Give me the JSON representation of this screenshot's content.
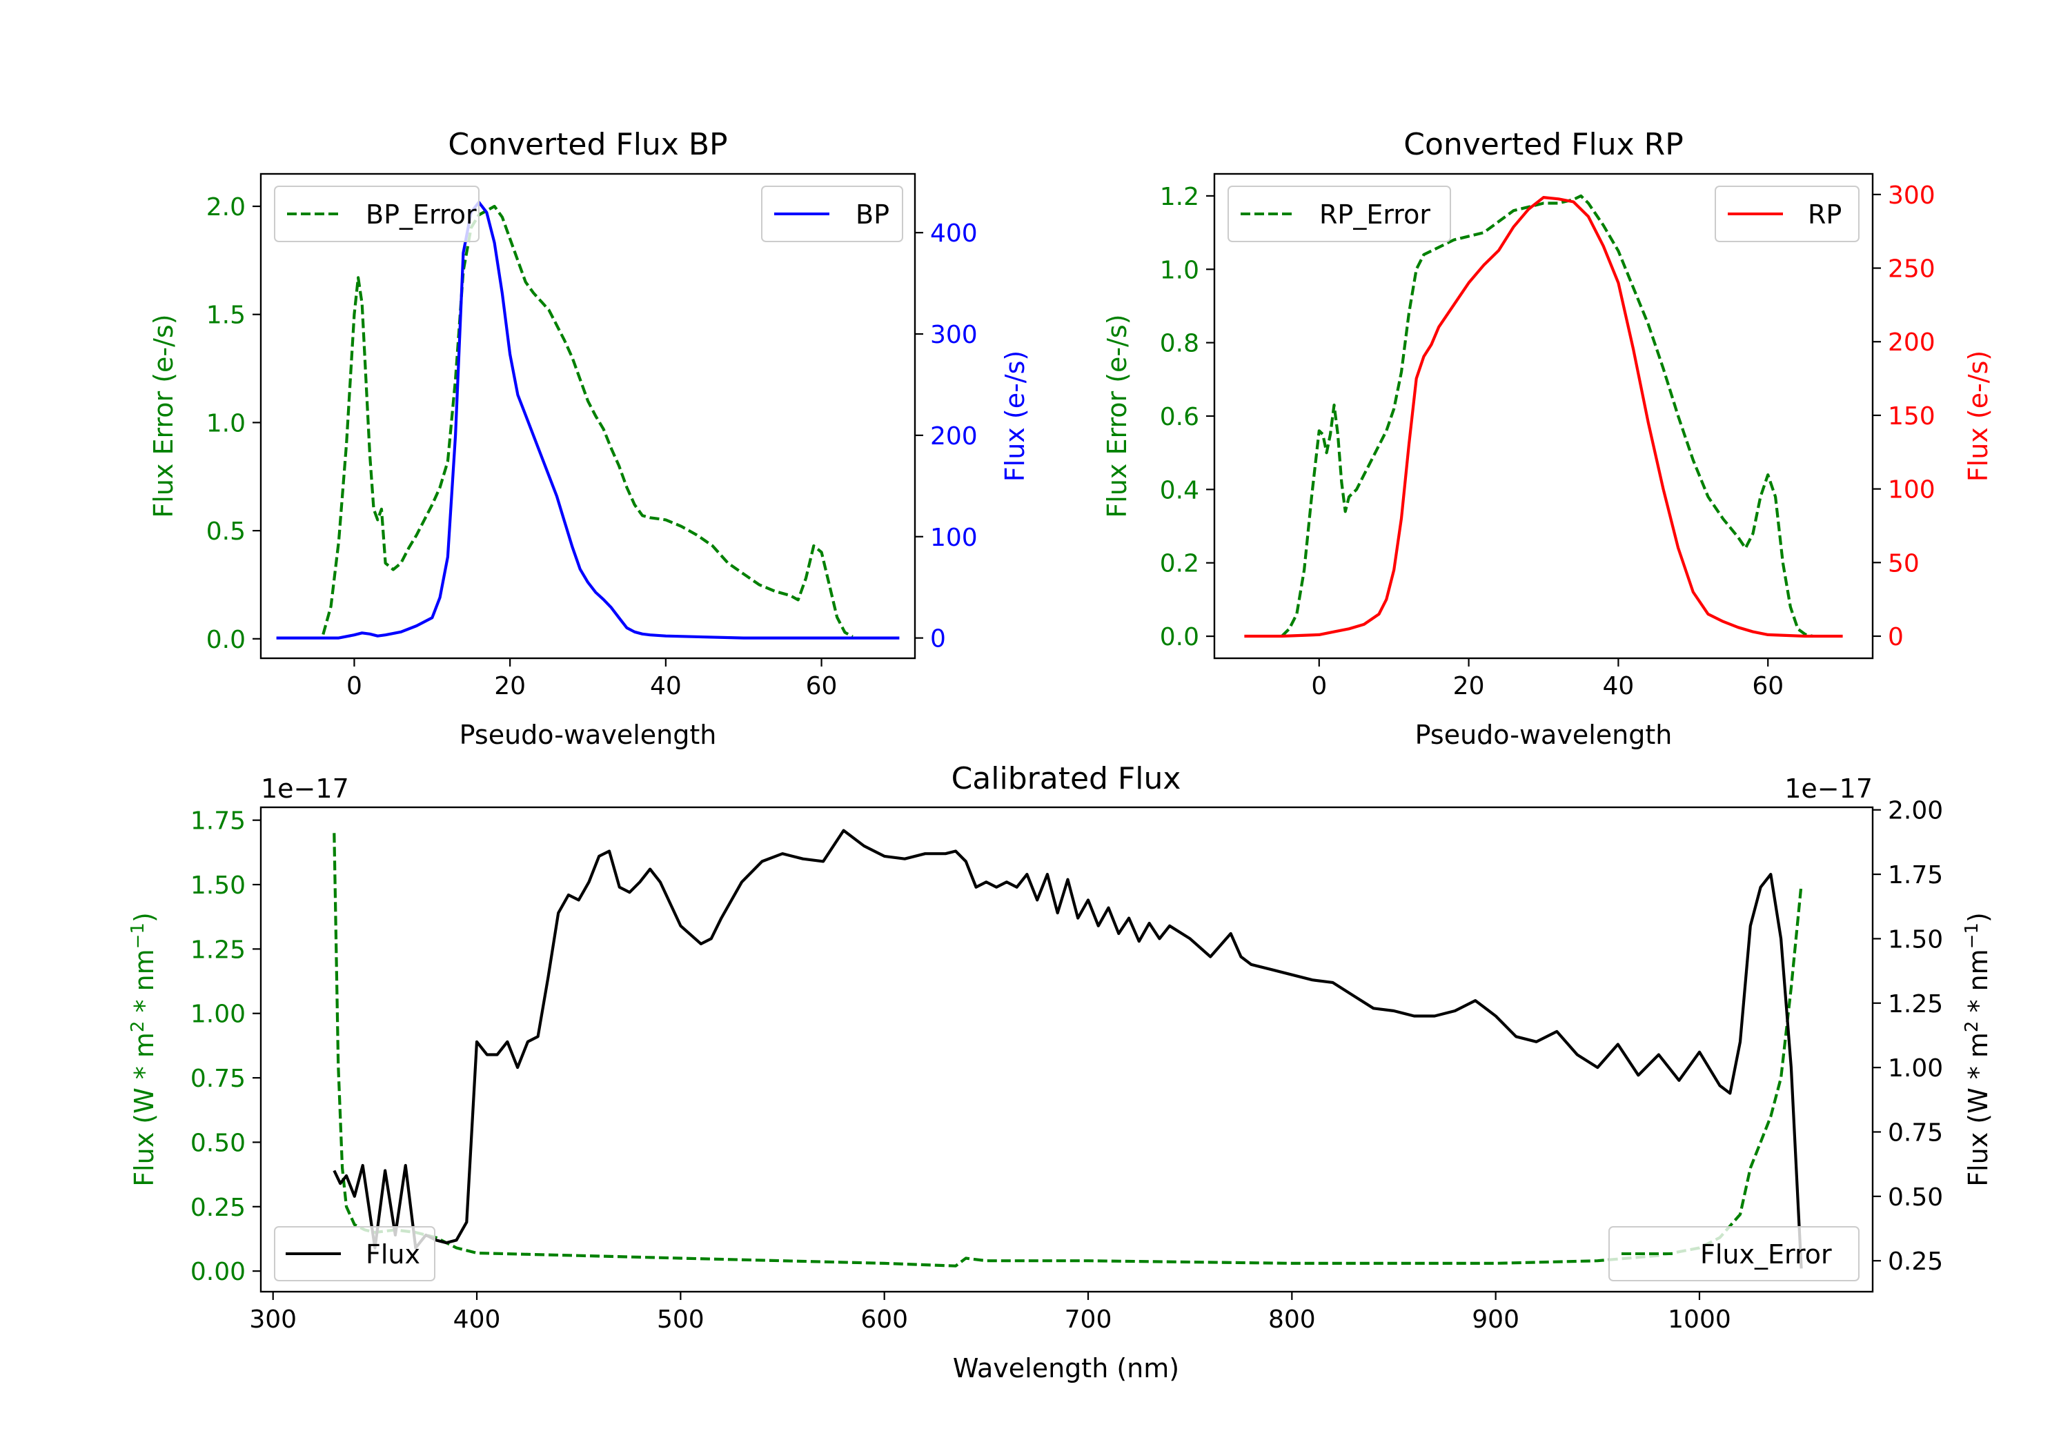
{
  "colors": {
    "green": "#008000",
    "blue": "#0000ff",
    "red": "#ff0000",
    "black": "#000000"
  },
  "chart_data": [
    {
      "id": "bp",
      "type": "line",
      "title": "Converted Flux BP",
      "xlabel": "Pseudo-wavelength",
      "ylabel_left": "Flux Error (e-/s)",
      "ylabel_right": "Flux (e-/s)",
      "xlim": [
        -12,
        72
      ],
      "ylim_left": [
        -0.09,
        2.15
      ],
      "ylim_right": [
        -20,
        458
      ],
      "xticks": [
        0,
        20,
        40,
        60
      ],
      "yticks_left": [
        0.0,
        0.5,
        1.0,
        1.5,
        2.0
      ],
      "yticks_left_labels": [
        "0.0",
        "0.5",
        "1.0",
        "1.5",
        "2.0"
      ],
      "yticks_right": [
        0,
        100,
        200,
        300,
        400
      ],
      "yticks_right_labels": [
        "0",
        "100",
        "200",
        "300",
        "400"
      ],
      "legend_left": "top-left",
      "legend_right": "top-right",
      "series": [
        {
          "name": "BP_Error",
          "axis": "left",
          "style": "dashed",
          "color": "green",
          "x": [
            -4,
            -3,
            -2,
            -1,
            0,
            0.5,
            1,
            2,
            2.5,
            3,
            3.5,
            4,
            5,
            6,
            7,
            8,
            9,
            10,
            11,
            12,
            13,
            14,
            15,
            16,
            17,
            18,
            19,
            20,
            21,
            22,
            23,
            24,
            25,
            26,
            27,
            28,
            29,
            30,
            31,
            32,
            33,
            34,
            35,
            36,
            37,
            38,
            40,
            42,
            44,
            46,
            48,
            50,
            52,
            54,
            56,
            57,
            58,
            59,
            60,
            61,
            62,
            63,
            64
          ],
          "y": [
            0.02,
            0.15,
            0.45,
            0.9,
            1.5,
            1.67,
            1.55,
            0.85,
            0.6,
            0.55,
            0.6,
            0.35,
            0.32,
            0.35,
            0.42,
            0.48,
            0.55,
            0.62,
            0.7,
            0.82,
            1.2,
            1.7,
            1.9,
            1.96,
            1.98,
            2.0,
            1.95,
            1.85,
            1.75,
            1.65,
            1.6,
            1.56,
            1.52,
            1.45,
            1.38,
            1.3,
            1.2,
            1.1,
            1.03,
            0.97,
            0.88,
            0.8,
            0.7,
            0.62,
            0.57,
            0.56,
            0.55,
            0.52,
            0.48,
            0.43,
            0.35,
            0.3,
            0.25,
            0.22,
            0.2,
            0.18,
            0.28,
            0.43,
            0.4,
            0.25,
            0.1,
            0.03,
            0.01
          ]
        },
        {
          "name": "BP",
          "axis": "right",
          "style": "solid",
          "color": "blue",
          "x": [
            -10,
            -8,
            -6,
            -4,
            -2,
            0,
            1,
            2,
            3,
            4,
            6,
            8,
            10,
            11,
            12,
            13,
            14,
            15,
            16,
            17,
            18,
            19,
            20,
            21,
            22,
            23,
            24,
            25,
            26,
            27,
            28,
            29,
            30,
            31,
            32,
            33,
            34,
            35,
            36,
            37,
            38,
            40,
            45,
            50,
            55,
            60,
            65,
            70
          ],
          "y": [
            0,
            0,
            0,
            0,
            0,
            3,
            5,
            4,
            2,
            3,
            6,
            12,
            20,
            40,
            80,
            200,
            380,
            420,
            430,
            420,
            390,
            340,
            280,
            240,
            220,
            200,
            180,
            160,
            140,
            115,
            90,
            68,
            55,
            45,
            38,
            30,
            20,
            10,
            6,
            4,
            3,
            2,
            1,
            0,
            0,
            0,
            0,
            0
          ]
        }
      ]
    },
    {
      "id": "rp",
      "type": "line",
      "title": "Converted Flux RP",
      "xlabel": "Pseudo-wavelength",
      "ylabel_left": "Flux Error (e-/s)",
      "ylabel_right": "Flux (e-/s)",
      "xlim": [
        -14,
        74
      ],
      "ylim_left": [
        -0.06,
        1.26
      ],
      "ylim_right": [
        -15,
        314
      ],
      "xticks": [
        0,
        20,
        40,
        60
      ],
      "yticks_left": [
        0.0,
        0.2,
        0.4,
        0.6,
        0.8,
        1.0,
        1.2
      ],
      "yticks_left_labels": [
        "0.0",
        "0.2",
        "0.4",
        "0.6",
        "0.8",
        "1.0",
        "1.2"
      ],
      "yticks_right": [
        0,
        50,
        100,
        150,
        200,
        250,
        300
      ],
      "yticks_right_labels": [
        "0",
        "50",
        "100",
        "150",
        "200",
        "250",
        "300"
      ],
      "legend_left": "top-left",
      "legend_right": "top-right",
      "series": [
        {
          "name": "RP_Error",
          "axis": "left",
          "style": "dashed",
          "color": "green",
          "x": [
            -5,
            -4,
            -3,
            -2,
            -1,
            0,
            0.5,
            1,
            1.5,
            2,
            2.5,
            3,
            3.5,
            4,
            5,
            6,
            7,
            8,
            9,
            10,
            11,
            12,
            13,
            14,
            15,
            16,
            17,
            18,
            20,
            22,
            24,
            26,
            28,
            30,
            32,
            34,
            35,
            36,
            38,
            40,
            42,
            44,
            46,
            48,
            50,
            52,
            54,
            56,
            57,
            58,
            59,
            60,
            61,
            62,
            63,
            64,
            65,
            66
          ],
          "y": [
            0.0,
            0.02,
            0.06,
            0.18,
            0.38,
            0.56,
            0.55,
            0.5,
            0.55,
            0.63,
            0.55,
            0.42,
            0.34,
            0.38,
            0.4,
            0.44,
            0.48,
            0.52,
            0.56,
            0.62,
            0.72,
            0.88,
            1.0,
            1.04,
            1.05,
            1.06,
            1.07,
            1.08,
            1.09,
            1.1,
            1.13,
            1.16,
            1.17,
            1.18,
            1.18,
            1.19,
            1.2,
            1.18,
            1.12,
            1.05,
            0.95,
            0.85,
            0.73,
            0.6,
            0.48,
            0.38,
            0.32,
            0.27,
            0.24,
            0.28,
            0.38,
            0.44,
            0.38,
            0.2,
            0.08,
            0.02,
            0.005,
            0.0
          ]
        },
        {
          "name": "RP",
          "axis": "right",
          "style": "solid",
          "color": "red",
          "x": [
            -10,
            -5,
            0,
            2,
            4,
            6,
            8,
            9,
            10,
            11,
            12,
            13,
            14,
            15,
            16,
            18,
            20,
            22,
            24,
            26,
            28,
            30,
            32,
            34,
            36,
            38,
            40,
            42,
            44,
            46,
            48,
            50,
            52,
            54,
            56,
            58,
            60,
            65,
            70
          ],
          "y": [
            0,
            0,
            1,
            3,
            5,
            8,
            15,
            25,
            45,
            80,
            130,
            175,
            190,
            198,
            210,
            225,
            240,
            252,
            262,
            278,
            290,
            298,
            297,
            295,
            285,
            265,
            240,
            195,
            145,
            100,
            60,
            30,
            15,
            10,
            6,
            3,
            1,
            0,
            0
          ]
        }
      ]
    },
    {
      "id": "cal",
      "type": "line",
      "title": "Calibrated Flux",
      "xlabel": "Wavelength (nm)",
      "ylabel_left": "Flux (W * m2 * nm-1)",
      "ylabel_right": "Flux (W * m2 * nm-1)",
      "offset_left": "1e−17",
      "offset_right": "1e−17",
      "xlim": [
        294,
        1085
      ],
      "ylim_left": [
        -0.08,
        1.8
      ],
      "ylim_right": [
        0.13,
        2.01
      ],
      "xticks": [
        300,
        400,
        500,
        600,
        700,
        800,
        900,
        1000
      ],
      "yticks_left": [
        0.0,
        0.25,
        0.5,
        0.75,
        1.0,
        1.25,
        1.5,
        1.75
      ],
      "yticks_left_labels": [
        "0.00",
        "0.25",
        "0.50",
        "0.75",
        "1.00",
        "1.25",
        "1.50",
        "1.75"
      ],
      "yticks_right": [
        0.25,
        0.5,
        0.75,
        1.0,
        1.25,
        1.5,
        1.75,
        2.0
      ],
      "yticks_right_labels": [
        "0.25",
        "0.50",
        "0.75",
        "1.00",
        "1.25",
        "1.50",
        "1.75",
        "2.00"
      ],
      "legend_left": "bottom-left",
      "legend_right": "bottom-right",
      "series": [
        {
          "name": "Flux_Error",
          "axis": "left",
          "style": "dashed",
          "color": "green",
          "x": [
            330,
            332,
            334,
            336,
            340,
            345,
            350,
            360,
            370,
            380,
            390,
            400,
            450,
            500,
            550,
            600,
            635,
            640,
            650,
            700,
            800,
            900,
            950,
            980,
            1000,
            1010,
            1020,
            1025,
            1030,
            1035,
            1040,
            1045,
            1050
          ],
          "y": [
            1.7,
            0.8,
            0.4,
            0.25,
            0.18,
            0.16,
            0.15,
            0.16,
            0.15,
            0.13,
            0.09,
            0.07,
            0.06,
            0.05,
            0.04,
            0.03,
            0.02,
            0.05,
            0.04,
            0.04,
            0.03,
            0.03,
            0.04,
            0.06,
            0.09,
            0.13,
            0.22,
            0.4,
            0.5,
            0.6,
            0.75,
            1.1,
            1.5
          ]
        },
        {
          "name": "Flux",
          "axis": "right",
          "style": "solid",
          "color": "black",
          "x": [
            330,
            333,
            336,
            340,
            344,
            350,
            355,
            360,
            365,
            370,
            375,
            380,
            385,
            390,
            395,
            400,
            405,
            410,
            415,
            420,
            425,
            430,
            435,
            440,
            445,
            450,
            455,
            460,
            465,
            470,
            475,
            480,
            485,
            490,
            500,
            510,
            515,
            520,
            530,
            540,
            550,
            560,
            570,
            580,
            590,
            600,
            610,
            620,
            630,
            635,
            640,
            645,
            650,
            655,
            660,
            665,
            670,
            675,
            680,
            685,
            690,
            695,
            700,
            705,
            710,
            715,
            720,
            725,
            730,
            735,
            740,
            750,
            760,
            770,
            775,
            780,
            790,
            800,
            810,
            820,
            830,
            840,
            850,
            860,
            870,
            880,
            890,
            900,
            910,
            920,
            930,
            940,
            950,
            960,
            970,
            980,
            990,
            1000,
            1010,
            1015,
            1020,
            1025,
            1030,
            1035,
            1040,
            1045,
            1050
          ],
          "y": [
            0.6,
            0.55,
            0.58,
            0.5,
            0.62,
            0.3,
            0.6,
            0.35,
            0.62,
            0.3,
            0.35,
            0.33,
            0.32,
            0.33,
            0.4,
            1.1,
            1.05,
            1.05,
            1.1,
            1.0,
            1.1,
            1.12,
            1.35,
            1.6,
            1.67,
            1.65,
            1.72,
            1.82,
            1.84,
            1.7,
            1.68,
            1.72,
            1.77,
            1.72,
            1.55,
            1.48,
            1.5,
            1.58,
            1.72,
            1.8,
            1.83,
            1.81,
            1.8,
            1.92,
            1.86,
            1.82,
            1.81,
            1.83,
            1.83,
            1.84,
            1.8,
            1.7,
            1.72,
            1.7,
            1.72,
            1.7,
            1.75,
            1.65,
            1.75,
            1.6,
            1.73,
            1.58,
            1.65,
            1.55,
            1.62,
            1.52,
            1.58,
            1.49,
            1.56,
            1.5,
            1.55,
            1.5,
            1.43,
            1.52,
            1.43,
            1.4,
            1.38,
            1.36,
            1.34,
            1.33,
            1.28,
            1.23,
            1.22,
            1.2,
            1.2,
            1.22,
            1.26,
            1.2,
            1.12,
            1.1,
            1.14,
            1.05,
            1.0,
            1.09,
            0.97,
            1.05,
            0.95,
            1.06,
            0.93,
            0.9,
            1.1,
            1.55,
            1.7,
            1.75,
            1.5,
            1.0,
            0.22
          ]
        }
      ]
    }
  ]
}
